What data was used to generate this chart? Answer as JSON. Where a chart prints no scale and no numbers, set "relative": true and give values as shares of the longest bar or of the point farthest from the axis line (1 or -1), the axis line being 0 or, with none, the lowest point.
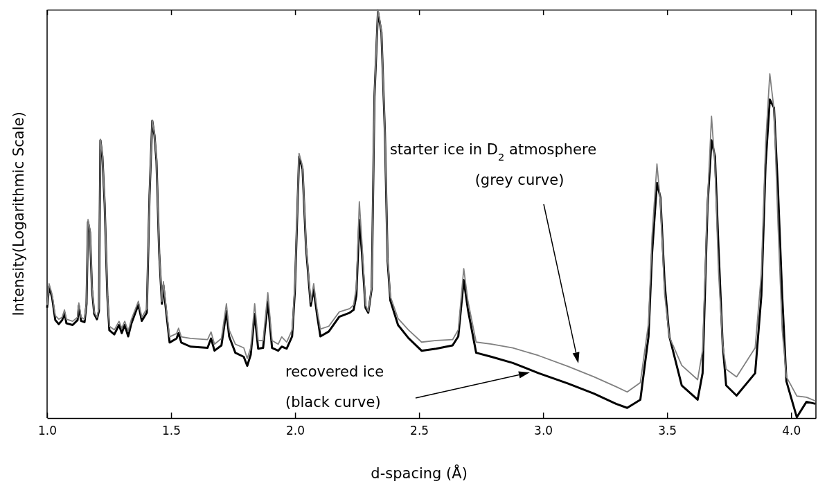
{
  "chart_data": {
    "type": "line",
    "relative": true,
    "xlabel": "d-spacing (Å)",
    "ylabel": "Intensity(Logarithmic Scale)",
    "xlim": [
      1.0,
      4.1
    ],
    "xticks": [
      {
        "value": 1,
        "label": "1.0"
      },
      {
        "value": 1.5,
        "label": "1.5"
      },
      {
        "value": 2,
        "label": "2.0"
      },
      {
        "value": 2.5,
        "label": "2.5"
      },
      {
        "value": 3,
        "label": "3.0"
      },
      {
        "value": 3.5,
        "label": "3.5"
      },
      {
        "value": 4,
        "label": "4.0"
      }
    ],
    "grid": false,
    "marker": "none",
    "line_style": "solid",
    "annotations": [
      "starter ice in D$_{2}$ atmosphere\n(grey curve)",
      "recovered ice\n(black curve)"
    ],
    "series": [
      {
        "color": "#808080",
        "x": [
          1.0,
          1.008,
          1.02,
          1.033,
          1.047,
          1.061,
          1.07,
          1.078,
          1.103,
          1.123,
          1.128,
          1.137,
          1.151,
          1.159,
          1.165,
          1.173,
          1.181,
          1.19,
          1.201,
          1.209,
          1.215,
          1.223,
          1.232,
          1.243,
          1.251,
          1.271,
          1.29,
          1.301,
          1.313,
          1.327,
          1.34,
          1.368,
          1.382,
          1.402,
          1.413,
          1.424,
          1.433,
          1.441,
          1.452,
          1.463,
          1.469,
          1.477,
          1.494,
          1.522,
          1.53,
          1.541,
          1.578,
          1.647,
          1.661,
          1.675,
          1.703,
          1.723,
          1.734,
          1.759,
          1.793,
          1.807,
          1.821,
          1.837,
          1.851,
          1.871,
          1.89,
          1.907,
          1.932,
          1.946,
          1.966,
          1.988,
          1.999,
          2.016,
          2.03,
          2.044,
          2.063,
          2.075,
          2.088,
          2.102,
          2.136,
          2.178,
          2.22,
          2.236,
          2.247,
          2.259,
          2.27,
          2.284,
          2.295,
          2.309,
          2.32,
          2.334,
          2.348,
          2.362,
          2.373,
          2.384,
          2.415,
          2.457,
          2.51,
          2.569,
          2.635,
          2.658,
          2.68,
          2.697,
          2.73,
          2.792,
          2.878,
          2.982,
          3.099,
          3.205,
          3.294,
          3.339,
          3.392,
          3.425,
          3.439,
          3.459,
          3.473,
          3.49,
          3.509,
          3.559,
          3.623,
          3.643,
          3.663,
          3.679,
          3.693,
          3.707,
          3.724,
          3.738,
          3.78,
          3.855,
          3.88,
          3.897,
          3.914,
          3.931,
          3.947,
          3.964,
          3.981,
          4.023,
          4.062,
          4.098
        ],
        "values": [
          0.277,
          0.329,
          0.303,
          0.251,
          0.242,
          0.247,
          0.265,
          0.242,
          0.237,
          0.247,
          0.282,
          0.247,
          0.242,
          0.286,
          0.486,
          0.46,
          0.321,
          0.26,
          0.247,
          0.268,
          0.683,
          0.643,
          0.53,
          0.303,
          0.225,
          0.216,
          0.237,
          0.22,
          0.237,
          0.213,
          0.242,
          0.286,
          0.247,
          0.268,
          0.547,
          0.73,
          0.695,
          0.634,
          0.408,
          0.286,
          0.334,
          0.286,
          0.199,
          0.207,
          0.22,
          0.199,
          0.195,
          0.192,
          0.211,
          0.181,
          0.195,
          0.28,
          0.216,
          0.181,
          0.172,
          0.146,
          0.172,
          0.28,
          0.19,
          0.19,
          0.307,
          0.19,
          0.181,
          0.199,
          0.186,
          0.216,
          0.321,
          0.648,
          0.617,
          0.425,
          0.284,
          0.329,
          0.268,
          0.218,
          0.225,
          0.26,
          0.268,
          0.277,
          0.321,
          0.53,
          0.425,
          0.277,
          0.261,
          0.321,
          0.791,
          1.0,
          0.948,
          0.704,
          0.39,
          0.298,
          0.244,
          0.216,
          0.186,
          0.19,
          0.192,
          0.216,
          0.366,
          0.286,
          0.186,
          0.181,
          0.172,
          0.153,
          0.127,
          0.101,
          0.077,
          0.064,
          0.087,
          0.232,
          0.443,
          0.622,
          0.53,
          0.303,
          0.199,
          0.129,
          0.094,
          0.166,
          0.53,
          0.739,
          0.617,
          0.362,
          0.181,
          0.12,
          0.101,
          0.172,
          0.355,
          0.669,
          0.843,
          0.756,
          0.477,
          0.216,
          0.101,
          0.054,
          0.051,
          0.042
        ]
      },
      {
        "color": "#000000",
        "x": [
          1.0,
          1.008,
          1.02,
          1.033,
          1.047,
          1.061,
          1.07,
          1.078,
          1.103,
          1.123,
          1.128,
          1.137,
          1.151,
          1.159,
          1.165,
          1.173,
          1.181,
          1.19,
          1.201,
          1.209,
          1.215,
          1.223,
          1.232,
          1.243,
          1.251,
          1.271,
          1.29,
          1.301,
          1.313,
          1.327,
          1.34,
          1.368,
          1.382,
          1.402,
          1.413,
          1.424,
          1.433,
          1.441,
          1.452,
          1.463,
          1.469,
          1.477,
          1.494,
          1.522,
          1.53,
          1.541,
          1.578,
          1.647,
          1.661,
          1.675,
          1.703,
          1.723,
          1.734,
          1.759,
          1.793,
          1.807,
          1.821,
          1.837,
          1.851,
          1.871,
          1.89,
          1.907,
          1.932,
          1.946,
          1.966,
          1.988,
          1.999,
          2.016,
          2.03,
          2.044,
          2.063,
          2.075,
          2.088,
          2.102,
          2.136,
          2.178,
          2.22,
          2.236,
          2.247,
          2.259,
          2.27,
          2.284,
          2.295,
          2.309,
          2.32,
          2.334,
          2.348,
          2.362,
          2.373,
          2.384,
          2.415,
          2.457,
          2.51,
          2.569,
          2.635,
          2.658,
          2.68,
          2.697,
          2.73,
          2.792,
          2.878,
          2.982,
          3.099,
          3.205,
          3.294,
          3.339,
          3.392,
          3.425,
          3.439,
          3.459,
          3.473,
          3.49,
          3.509,
          3.559,
          3.623,
          3.643,
          3.663,
          3.679,
          3.693,
          3.707,
          3.724,
          3.738,
          3.78,
          3.855,
          3.88,
          3.897,
          3.914,
          3.931,
          3.947,
          3.964,
          3.981,
          4.023,
          4.062,
          4.098
        ],
        "values": [
          0.27,
          0.322,
          0.296,
          0.24,
          0.23,
          0.24,
          0.258,
          0.232,
          0.228,
          0.24,
          0.275,
          0.238,
          0.235,
          0.28,
          0.48,
          0.455,
          0.315,
          0.255,
          0.242,
          0.262,
          0.68,
          0.64,
          0.525,
          0.298,
          0.215,
          0.205,
          0.228,
          0.208,
          0.228,
          0.2,
          0.232,
          0.278,
          0.238,
          0.258,
          0.545,
          0.728,
          0.692,
          0.63,
          0.404,
          0.28,
          0.325,
          0.278,
          0.185,
          0.195,
          0.208,
          0.185,
          0.175,
          0.172,
          0.195,
          0.165,
          0.178,
          0.262,
          0.2,
          0.16,
          0.15,
          0.128,
          0.155,
          0.255,
          0.17,
          0.172,
          0.285,
          0.172,
          0.165,
          0.175,
          0.17,
          0.2,
          0.31,
          0.64,
          0.61,
          0.418,
          0.275,
          0.315,
          0.255,
          0.2,
          0.212,
          0.248,
          0.258,
          0.265,
          0.3,
          0.485,
          0.4,
          0.27,
          0.258,
          0.318,
          0.788,
          0.995,
          0.945,
          0.7,
          0.385,
          0.288,
          0.228,
          0.196,
          0.165,
          0.17,
          0.178,
          0.2,
          0.338,
          0.265,
          0.16,
          0.15,
          0.135,
          0.11,
          0.085,
          0.06,
          0.035,
          0.025,
          0.045,
          0.2,
          0.4,
          0.576,
          0.54,
          0.33,
          0.2,
          0.08,
          0.045,
          0.11,
          0.52,
          0.68,
          0.64,
          0.42,
          0.18,
          0.08,
          0.055,
          0.11,
          0.3,
          0.62,
          0.78,
          0.76,
          0.56,
          0.3,
          0.09,
          0.002,
          0.04,
          0.035
        ]
      }
    ]
  }
}
